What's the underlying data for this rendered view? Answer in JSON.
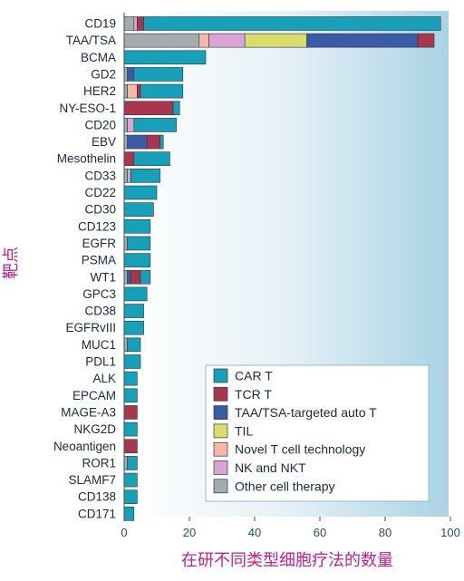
{
  "chart_data": {
    "type": "bar",
    "orientation": "horizontal",
    "stacked": true,
    "xlabel": "在研不同类型细胞疗法的数量",
    "ylabel": "靶点",
    "xlim": [
      0,
      100
    ],
    "xticks": [
      0,
      20,
      40,
      60,
      80,
      100
    ],
    "grid": false,
    "legend_position": "bottom-right",
    "categories": [
      "CD19",
      "TAA/TSA",
      "BCMA",
      "GD2",
      "HER2",
      "NY-ESO-1",
      "CD20",
      "EBV",
      "Mesothelin",
      "CD33",
      "CD22",
      "CD30",
      "CD123",
      "EGFR",
      "PSMA",
      "WT1",
      "GPC3",
      "CD38",
      "EGFRvIII",
      "MUC1",
      "PDL1",
      "ALK",
      "EPCAM",
      "MAGE-A3",
      "NKG2D",
      "Neoantigen",
      "ROR1",
      "SLAMF7",
      "CD138",
      "CD171"
    ],
    "series": [
      {
        "name": "Other cell therapy",
        "color": "#a4acb0",
        "values": [
          3,
          23,
          0,
          1,
          1,
          0,
          1,
          1,
          0,
          1,
          0,
          0,
          0,
          1,
          0,
          1,
          0,
          0,
          0,
          1,
          0,
          0,
          0,
          0,
          0,
          0,
          1,
          0,
          0,
          0
        ]
      },
      {
        "name": "Novel T cell technology",
        "color": "#f5b8a8",
        "values": [
          0,
          3,
          0,
          0,
          3,
          0,
          0,
          0,
          0,
          0,
          0,
          0,
          0,
          0,
          0,
          0,
          0,
          0,
          0,
          0,
          0,
          0,
          0,
          0,
          0,
          0,
          0,
          0,
          0,
          0
        ]
      },
      {
        "name": "NK and NKT",
        "color": "#d9a4d6",
        "values": [
          1,
          11,
          0,
          0,
          0,
          0,
          2,
          0,
          0,
          1,
          0,
          0,
          0,
          0,
          0,
          0,
          0,
          0,
          0,
          0,
          0,
          0,
          0,
          0,
          0,
          0,
          0,
          0,
          0,
          0
        ]
      },
      {
        "name": "TIL",
        "color": "#d9dd6c",
        "values": [
          0,
          19,
          0,
          0,
          0,
          0,
          0,
          0,
          0,
          0,
          0,
          0,
          0,
          0,
          0,
          0,
          0,
          0,
          0,
          0,
          0,
          0,
          0,
          0,
          0,
          0,
          0,
          0,
          0,
          0
        ]
      },
      {
        "name": "TAA/TSA-targeted auto T",
        "color": "#3b5ba6",
        "values": [
          0,
          34,
          0,
          2,
          0,
          0,
          0,
          6,
          0,
          0,
          0,
          0,
          0,
          0,
          0,
          1,
          0,
          0,
          0,
          0,
          0,
          0,
          0,
          0,
          0,
          0,
          0,
          0,
          0,
          0
        ]
      },
      {
        "name": "TCR T",
        "color": "#a8364f",
        "values": [
          2,
          5,
          0,
          0,
          1,
          15,
          0,
          4,
          3,
          0,
          0,
          0,
          0,
          0,
          0,
          3,
          0,
          0,
          0,
          0,
          0,
          0,
          0,
          4,
          0,
          4,
          0,
          0,
          0,
          0
        ]
      },
      {
        "name": "CAR T",
        "color": "#17a0b8",
        "values": [
          91,
          0,
          25,
          15,
          13,
          2,
          13,
          1,
          11,
          9,
          10,
          9,
          8,
          7,
          8,
          3,
          7,
          6,
          6,
          4,
          5,
          4,
          4,
          0,
          4,
          0,
          3,
          4,
          4,
          3
        ]
      }
    ]
  }
}
